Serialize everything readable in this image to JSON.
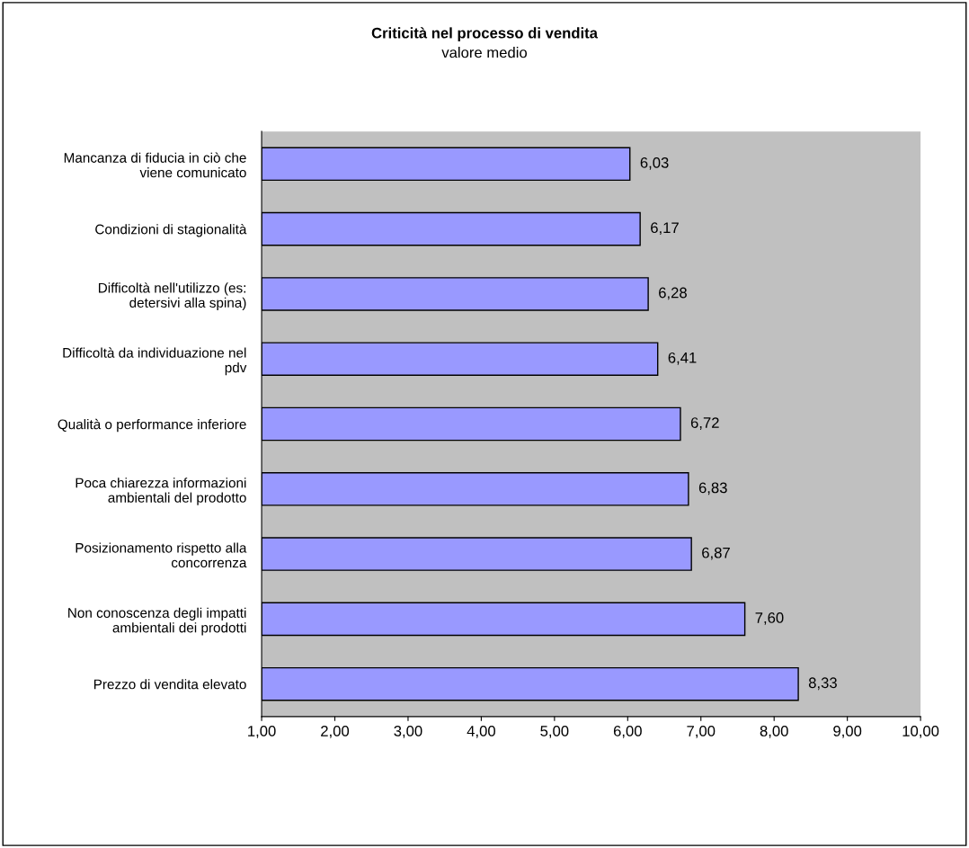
{
  "chart_data": {
    "type": "bar",
    "orientation": "horizontal",
    "title": "Criticità nel processo di vendita",
    "subtitle": "valore medio",
    "categories": [
      "Mancanza di fiducia in ciò che viene comunicato",
      "Condizioni di stagionalità",
      "Difficoltà nell'utilizzo (es: detersivi alla spina)",
      "Difficoltà da individuazione nel pdv",
      "Qualità o performance inferiore",
      "Poca chiarezza informazioni ambientali del prodotto",
      "Posizionamento rispetto alla concorrenza",
      "Non conoscenza degli impatti ambientali dei prodotti",
      "Prezzo di vendita elevato"
    ],
    "values": [
      6.03,
      6.17,
      6.28,
      6.41,
      6.72,
      6.83,
      6.87,
      7.6,
      8.33
    ],
    "value_labels": [
      "6,03",
      "6,17",
      "6,28",
      "6,41",
      "6,72",
      "6,83",
      "6,87",
      "7,60",
      "8,33"
    ],
    "color": "#9999ff",
    "xlim": [
      1,
      10
    ],
    "xticks": [
      {
        "value": 1,
        "label": "1,00"
      },
      {
        "value": 2,
        "label": "2,00"
      },
      {
        "value": 3,
        "label": "3,00"
      },
      {
        "value": 4,
        "label": "4,00"
      },
      {
        "value": 5,
        "label": "5,00"
      },
      {
        "value": 6,
        "label": "6,00"
      },
      {
        "value": 7,
        "label": "7,00"
      },
      {
        "value": 8,
        "label": "8,00"
      },
      {
        "value": 9,
        "label": "9,00"
      },
      {
        "value": 10,
        "label": "10,00"
      }
    ],
    "grid": false,
    "legend": false
  }
}
